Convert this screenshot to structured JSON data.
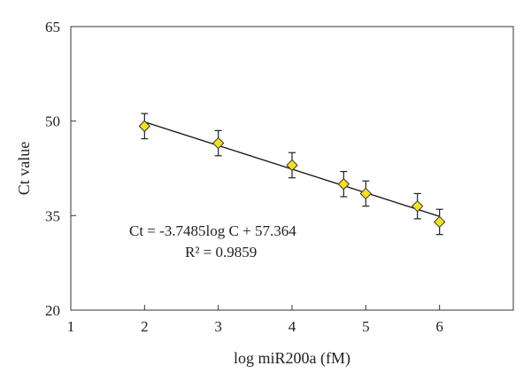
{
  "chart_data": {
    "type": "scatter",
    "xlabel": "log miR200a (fM)",
    "ylabel": "Ct value",
    "xlim": [
      1,
      7
    ],
    "ylim": [
      20,
      65
    ],
    "xticks": [
      1,
      2,
      3,
      4,
      5,
      6
    ],
    "yticks": [
      20,
      35,
      50,
      65
    ],
    "grid": false,
    "series": [
      {
        "marker": "diamond",
        "color": "#f2e21c",
        "points": [
          {
            "x": 2.0,
            "y": 49.2,
            "err": 2.0
          },
          {
            "x": 3.0,
            "y": 46.5,
            "err": 2.0
          },
          {
            "x": 4.0,
            "y": 43.0,
            "err": 2.0
          },
          {
            "x": 4.7,
            "y": 40.0,
            "err": 2.0
          },
          {
            "x": 5.0,
            "y": 38.5,
            "err": 2.0
          },
          {
            "x": 5.7,
            "y": 36.5,
            "err": 2.0
          },
          {
            "x": 6.0,
            "y": 34.0,
            "err": 2.0
          }
        ]
      }
    ],
    "fit_line": {
      "slope": -3.7485,
      "intercept": 57.364,
      "x_from": 2,
      "x_to": 6
    },
    "annotations": {
      "equation": "Ct = -3.7485log C + 57.364",
      "r_squared": "R² = 0.9859"
    }
  }
}
